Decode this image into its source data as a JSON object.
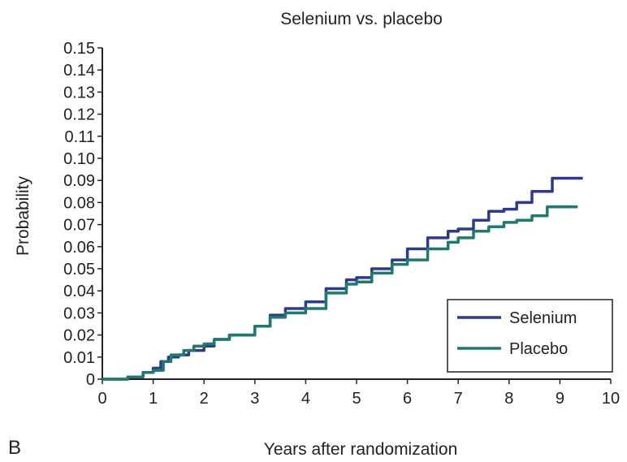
{
  "panel_label": "B",
  "chart_data": {
    "type": "line",
    "title": "Selenium vs. placebo",
    "xlabel": "Years after randomization",
    "ylabel": "Probability",
    "xlim": [
      0,
      10
    ],
    "ylim": [
      0,
      0.15
    ],
    "x_ticks": [
      0,
      1,
      2,
      3,
      4,
      5,
      6,
      7,
      8,
      9,
      10
    ],
    "y_ticks": [
      0,
      0.01,
      0.02,
      0.03,
      0.04,
      0.05,
      0.06,
      0.07,
      0.08,
      0.09,
      0.1,
      0.11,
      0.12,
      0.13,
      0.14,
      0.15
    ],
    "x_tick_labels": [
      "0",
      "1",
      "2",
      "3",
      "4",
      "5",
      "6",
      "7",
      "8",
      "9",
      "10"
    ],
    "y_tick_labels": [
      "0",
      "0.01",
      "0.02",
      "0.03",
      "0.04",
      "0.05",
      "0.06",
      "0.07",
      "0.08",
      "0.09",
      "0.10",
      "0.11",
      "0.12",
      "0.13",
      "0.14",
      "0.15"
    ],
    "grid": false,
    "legend_position": "bottom-right",
    "series": [
      {
        "name": "Selenium",
        "color": "#2e3a8c",
        "x": [
          0,
          0.5,
          0.8,
          1.0,
          1.15,
          1.3,
          1.5,
          1.7,
          2.0,
          2.2,
          2.5,
          3.0,
          3.3,
          3.6,
          4.0,
          4.4,
          4.8,
          5.0,
          5.3,
          5.7,
          6.0,
          6.4,
          6.8,
          7.0,
          7.3,
          7.6,
          7.9,
          8.15,
          8.45,
          8.85,
          9.45
        ],
        "y": [
          0,
          0.001,
          0.003,
          0.005,
          0.008,
          0.01,
          0.011,
          0.013,
          0.015,
          0.018,
          0.02,
          0.024,
          0.029,
          0.032,
          0.035,
          0.041,
          0.045,
          0.046,
          0.05,
          0.054,
          0.059,
          0.064,
          0.067,
          0.068,
          0.072,
          0.076,
          0.077,
          0.08,
          0.085,
          0.091,
          0.091
        ]
      },
      {
        "name": "Placebo",
        "color": "#1f7a6e",
        "x": [
          0,
          0.5,
          0.8,
          1.0,
          1.2,
          1.35,
          1.6,
          1.8,
          2.0,
          2.2,
          2.5,
          3.0,
          3.3,
          3.6,
          4.0,
          4.4,
          4.8,
          5.0,
          5.3,
          5.7,
          6.0,
          6.4,
          6.8,
          7.0,
          7.3,
          7.6,
          7.9,
          8.15,
          8.45,
          8.75,
          9.35
        ],
        "y": [
          0,
          0.001,
          0.003,
          0.004,
          0.008,
          0.011,
          0.013,
          0.015,
          0.016,
          0.018,
          0.02,
          0.024,
          0.028,
          0.03,
          0.032,
          0.039,
          0.043,
          0.044,
          0.048,
          0.052,
          0.054,
          0.059,
          0.062,
          0.064,
          0.067,
          0.069,
          0.071,
          0.072,
          0.074,
          0.078,
          0.078
        ]
      }
    ]
  }
}
